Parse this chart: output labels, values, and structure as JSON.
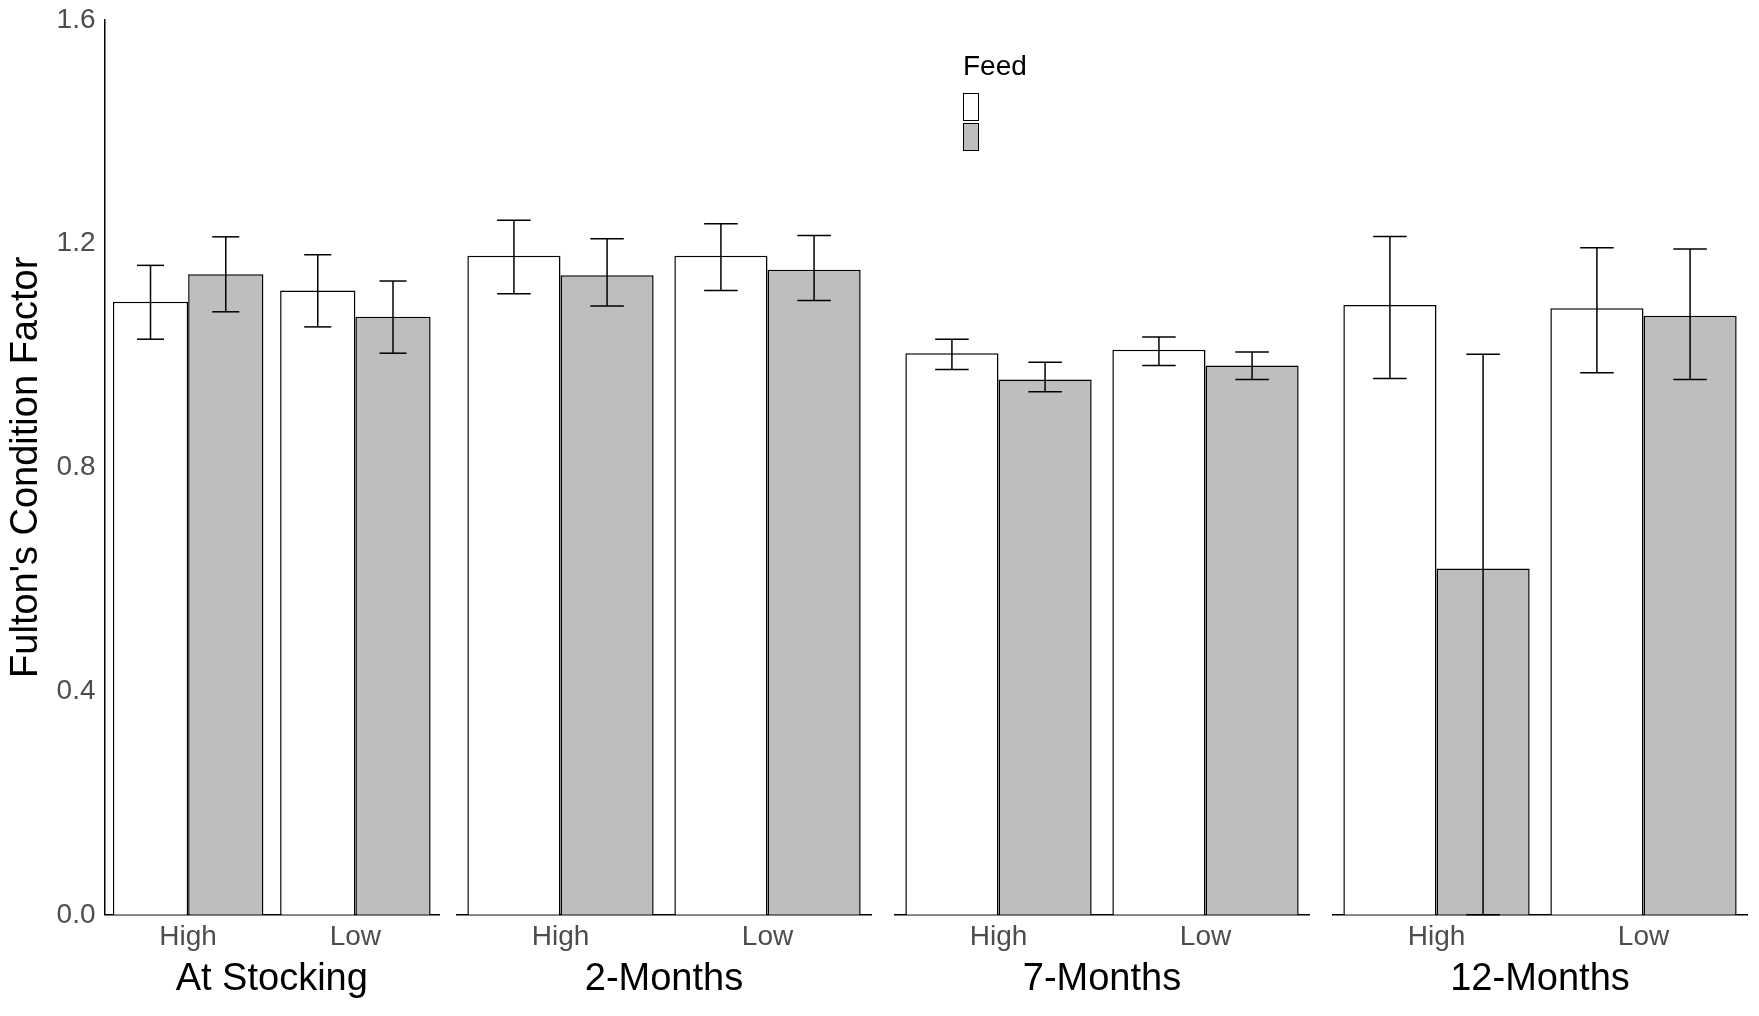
{
  "chart_data": [
    {
      "type": "bar",
      "xlabel": "At Stocking",
      "ylabel": "Fulton's Condition Factor",
      "categories": [
        "High",
        "Low"
      ],
      "ylim": [
        0,
        1.6
      ],
      "yticks": [
        {
          "value": 0,
          "label": "0.0"
        },
        {
          "value": 0.4,
          "label": "0.4"
        },
        {
          "value": 0.8,
          "label": "0.8"
        },
        {
          "value": 1.2,
          "label": "1.2"
        },
        {
          "value": 1.6,
          "label": "1.6"
        }
      ],
      "grid": false,
      "legend": false,
      "series": [
        {
          "color": "#ffffff",
          "values": [
            1.096,
            1.116
          ],
          "errors": [
            [
              1.029,
              1.161
            ],
            [
              1.051,
              1.18
            ]
          ]
        },
        {
          "color": "#bebebe",
          "values": [
            1.145,
            1.069
          ],
          "errors": [
            [
              1.078,
              1.212
            ],
            [
              1.004,
              1.133
            ]
          ]
        }
      ]
    },
    {
      "type": "bar",
      "xlabel": "2-Months",
      "categories": [
        "High",
        "Low"
      ],
      "ylim": [
        0,
        1.6
      ],
      "tick_labels": "x",
      "grid": false,
      "legend": false,
      "series": [
        {
          "color": "#ffffff",
          "values": [
            1.176,
            1.176
          ],
          "errors": [
            [
              1.108,
              1.239
            ],
            [
              1.114,
              1.233
            ]
          ]
        },
        {
          "color": "#bebebe",
          "values": [
            1.141,
            1.151
          ],
          "errors": [
            [
              1.086,
              1.206
            ],
            [
              1.096,
              1.212
            ]
          ]
        }
      ]
    },
    {
      "type": "bar",
      "xlabel": "7-Months",
      "categories": [
        "High",
        "Low"
      ],
      "ylim": [
        0,
        1.6
      ],
      "tick_labels": "x",
      "grid": false,
      "legend_title": "Feed",
      "series": [
        {
          "color": "#ffffff",
          "values": [
            1.002,
            1.008
          ],
          "errors": [
            [
              0.973,
              1.027
            ],
            [
              0.98,
              1.031
            ]
          ]
        },
        {
          "color": "#bebebe",
          "values": [
            0.955,
            0.98
          ],
          "errors": [
            [
              0.933,
              0.986
            ],
            [
              0.955,
              1.004
            ]
          ]
        }
      ]
    },
    {
      "type": "bar",
      "xlabel": "12-Months",
      "categories": [
        "High",
        "Low"
      ],
      "ylim": [
        0,
        1.6
      ],
      "tick_labels": "x",
      "grid": false,
      "legend": false,
      "series": [
        {
          "color": "#ffffff",
          "values": [
            1.088,
            1.082
          ],
          "errors": [
            [
              0.957,
              1.21
            ],
            [
              0.967,
              1.19
            ]
          ]
        },
        {
          "color": "#bebebe",
          "values": [
            0.618,
            1.069
          ],
          "errors": [
            [
              0,
              1.0
            ],
            [
              0.955,
              1.188
            ]
          ]
        }
      ]
    }
  ]
}
